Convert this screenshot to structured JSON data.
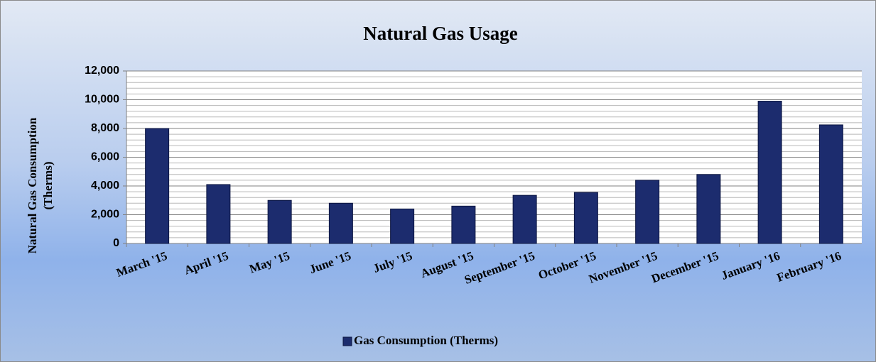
{
  "chart_data": {
    "type": "bar",
    "title": "Natural Gas Usage",
    "ylabel": [
      "Natural Gas Consumption",
      "(Therms)"
    ],
    "categories": [
      "March '15",
      "April '15",
      "May '15",
      "June '15",
      "July '15",
      "August '15",
      "September '15",
      "October '15",
      "November '15",
      "December '15",
      "January '16",
      "February '16"
    ],
    "series": [
      {
        "name": "Gas Consumption (Therms)",
        "color": "#1c2c6e",
        "values": [
          8000,
          4100,
          3000,
          2800,
          2400,
          2600,
          3350,
          3550,
          4400,
          4800,
          9900,
          8250
        ]
      }
    ],
    "ylim": [
      0,
      12000
    ],
    "yticks": [
      0,
      {
        "value": 2000,
        "label": "2,000"
      },
      {
        "value": 4000,
        "label": "4,000"
      },
      {
        "value": 6000,
        "label": "6,000"
      },
      {
        "value": 8000,
        "label": "8,000"
      },
      {
        "value": 10000,
        "label": "10,000"
      },
      {
        "value": 12000,
        "label": "12,000"
      }
    ],
    "yminorticks": [
      400,
      800,
      1200,
      1600,
      2400,
      2800,
      3200,
      3600,
      4400,
      4800,
      5200,
      5600,
      6400,
      6800,
      7200,
      7600,
      8400,
      8800,
      9200,
      9600,
      10400,
      10800,
      11200,
      11600
    ],
    "grid": true,
    "legend": "bottom"
  }
}
